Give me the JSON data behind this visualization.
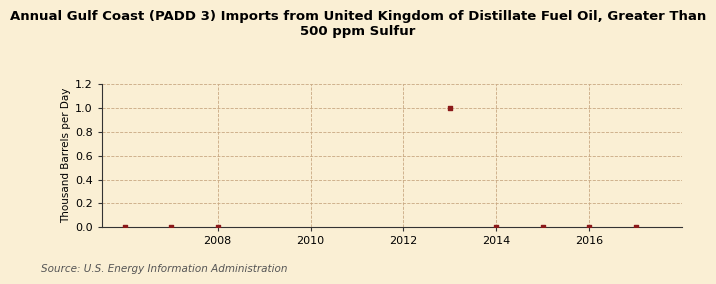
{
  "title": "Annual Gulf Coast (PADD 3) Imports from United Kingdom of Distillate Fuel Oil, Greater Than\n500 ppm Sulfur",
  "ylabel": "Thousand Barrels per Day",
  "source": "Source: U.S. Energy Information Administration",
  "background_color": "#faefd4",
  "plot_background_color": "#faefd4",
  "data_points": [
    {
      "year": 2006,
      "value": 0.0
    },
    {
      "year": 2007,
      "value": 0.0
    },
    {
      "year": 2008,
      "value": 0.0
    },
    {
      "year": 2013,
      "value": 1.0
    },
    {
      "year": 2014,
      "value": 0.0
    },
    {
      "year": 2015,
      "value": 0.0
    },
    {
      "year": 2016,
      "value": 0.0
    },
    {
      "year": 2017,
      "value": 0.0
    }
  ],
  "marker_color": "#8b1a1a",
  "marker_size": 3.5,
  "xlim": [
    2005.5,
    2018
  ],
  "ylim": [
    0.0,
    1.2
  ],
  "yticks": [
    0.0,
    0.2,
    0.4,
    0.6,
    0.8,
    1.0,
    1.2
  ],
  "xticks": [
    2008,
    2010,
    2012,
    2014,
    2016
  ],
  "grid_color": "#c8a882",
  "title_fontsize": 9.5,
  "label_fontsize": 7.5,
  "tick_fontsize": 8,
  "source_fontsize": 7.5
}
